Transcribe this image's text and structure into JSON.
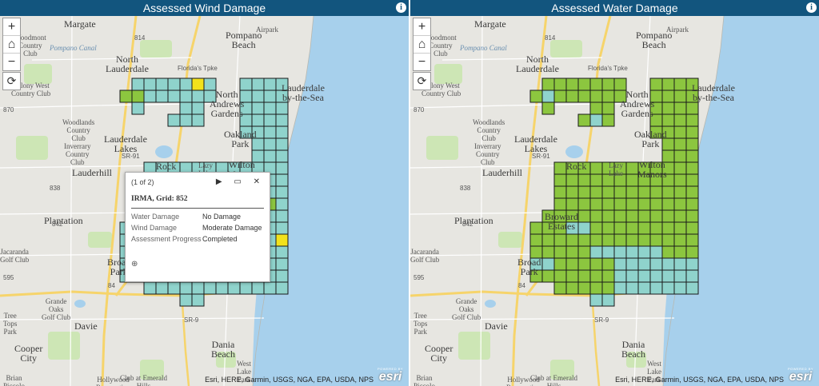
{
  "panels": {
    "left": {
      "title": "Assessed Wind Damage",
      "info_icon": "i"
    },
    "right": {
      "title": "Assessed Water Damage",
      "info_icon": "i"
    }
  },
  "controls": {
    "zoom_in": "+",
    "home_icon": "⌂",
    "zoom_out": "−",
    "refresh_icon": "⟳"
  },
  "attribution": "Esri, HERE, Garmin, USGS, NGA, EPA, USDA, NPS",
  "esri_logo": {
    "powered": "POWERED BY",
    "brand": "esri"
  },
  "map_labels": {
    "margate": "Margate",
    "airpark": "Airpark",
    "pompano_beach": "Pompano\nBeach",
    "woodmont": "Woodmont\nCountry\nClub",
    "pompano_canal": "Pompano Canal",
    "north_lauderdale": "North\nLauderdale",
    "colony_west": "Colony West\nCountry Club",
    "lauderdale_by_the_sea": "Lauderdale\nby-the-Sea",
    "north_andrews": "North\nAndrews\nGardens",
    "woodlands": "Woodlands\nCountry\nClub",
    "inverrary": "Inverrary\nCountry\nClub",
    "oakland_park": "Oakland\nPark",
    "lauderdale_lakes": "Lauderdale\nLakes",
    "lauderhill": "Lauderhill",
    "rock": "Rock",
    "lazy_lake": "Lazy\nLake",
    "wilton_manors": "Wilton\nManors",
    "plantation": "Plantation",
    "broward_estates": "Broward\nEstates",
    "jacaranda": "Jacaranda\nGolf Club",
    "broward_park": "Broad\nPark",
    "grande_oaks": "Grande\nOaks\nGolf Club",
    "tree_tops": "Tree\nTops\nPark",
    "davie": "Davie",
    "cooper_city": "Cooper\nCity",
    "dania_beach": "Dania\nBeach",
    "west_lake": "West\nLake\nPark",
    "club_emerald": "Club at Emerald\nHills",
    "hollywood_reservation": "Hollywood\nReservation",
    "brian_piccolo": "Brian\nPiccolo",
    "r814": "814",
    "r870": "870",
    "r838": "838",
    "r842": "842",
    "r84": "84",
    "r595": "595",
    "sr91": "SR-91",
    "sr9": "SR-9",
    "florida_tpke": "Florida's Tpke"
  },
  "grid_colors": {
    "no_damage": "#8fd3cc",
    "minor_damage": "#8cc63f",
    "moderate_damage": "#f2e21c",
    "outline": "#1a1a1a"
  },
  "popup": {
    "paging": "(1 of 2)",
    "controls": "▶ ▭ ✕",
    "title": "IRMA, Grid: 852",
    "rows": [
      {
        "key": "Water Damage",
        "value": "No Damage"
      },
      {
        "key": "Wind Damage",
        "value": "Moderate Damage"
      },
      {
        "key": "Assessment Progress",
        "value": "Completed"
      }
    ],
    "zoom_icon": "⊕"
  }
}
